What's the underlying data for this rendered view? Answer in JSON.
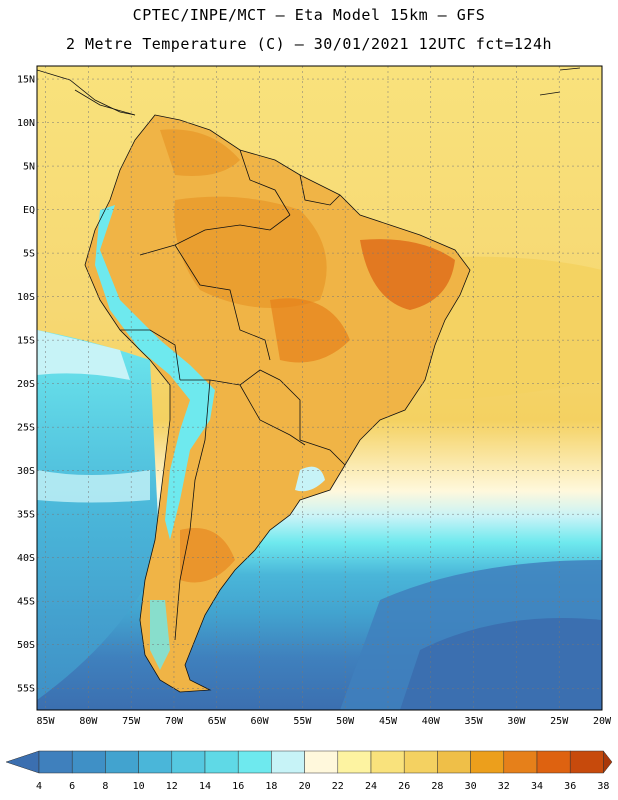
{
  "header": {
    "line1": "CPTEC/INPE/MCT –  Eta Model 15km – GFS",
    "line2": "2 Metre Temperature (C) – 30/01/2021 12UTC fct=124h"
  },
  "map": {
    "lat_labels": [
      "15N",
      "10N",
      "5N",
      "EQ",
      "5S",
      "10S",
      "15S",
      "20S",
      "25S",
      "30S",
      "35S",
      "40S",
      "45S",
      "50S",
      "55S"
    ],
    "lon_labels": [
      "85W",
      "80W",
      "75W",
      "70W",
      "65W",
      "60W",
      "55W",
      "50W",
      "45W",
      "40W",
      "35W",
      "30W",
      "25W",
      "20W"
    ],
    "lat_range": [
      -57.5,
      16.5
    ],
    "lon_range": [
      -86,
      -20
    ]
  },
  "colorbar": {
    "ticks": [
      "4",
      "6",
      "8",
      "10",
      "12",
      "14",
      "16",
      "18",
      "20",
      "22",
      "24",
      "26",
      "28",
      "30",
      "32",
      "34",
      "36",
      "38"
    ],
    "colors": [
      "#3b6fb0",
      "#3f80bd",
      "#3f90c6",
      "#42a3cf",
      "#4ab6d9",
      "#55c8e0",
      "#5fd9e6",
      "#6ee9ee",
      "#c7f3f7",
      "#fff8dc",
      "#fdf3a1",
      "#f9e27c",
      "#f4d161",
      "#efbf48",
      "#ec9f1c",
      "#e6801a",
      "#de6210",
      "#c74a0c",
      "#a8380a"
    ]
  }
}
